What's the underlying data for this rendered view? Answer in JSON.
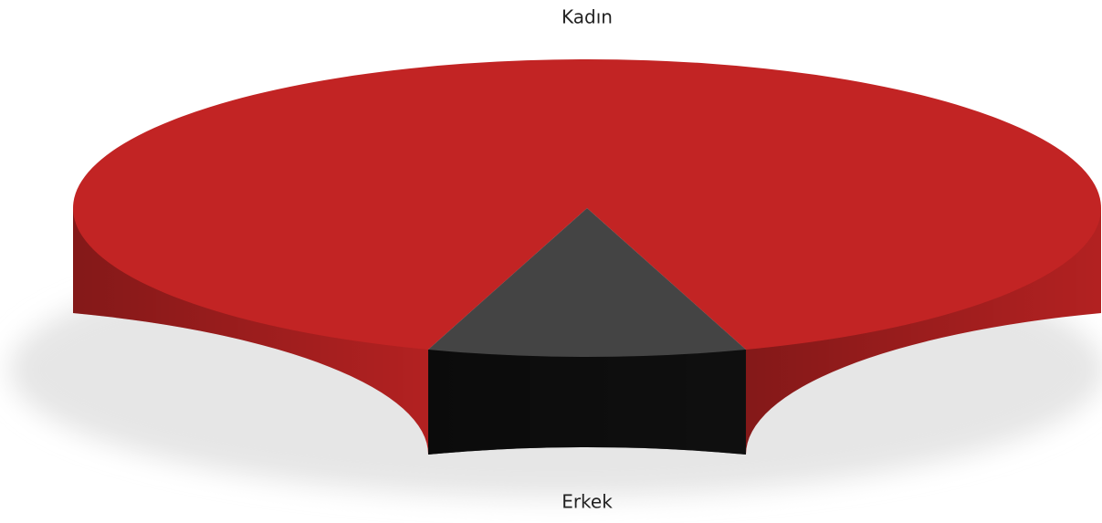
{
  "chart_data": {
    "type": "pie3d",
    "categories": [
      "Kadın",
      "Erkek"
    ],
    "values": [
      90,
      10
    ],
    "colors": [
      "#c22424",
      "#444444"
    ]
  }
}
